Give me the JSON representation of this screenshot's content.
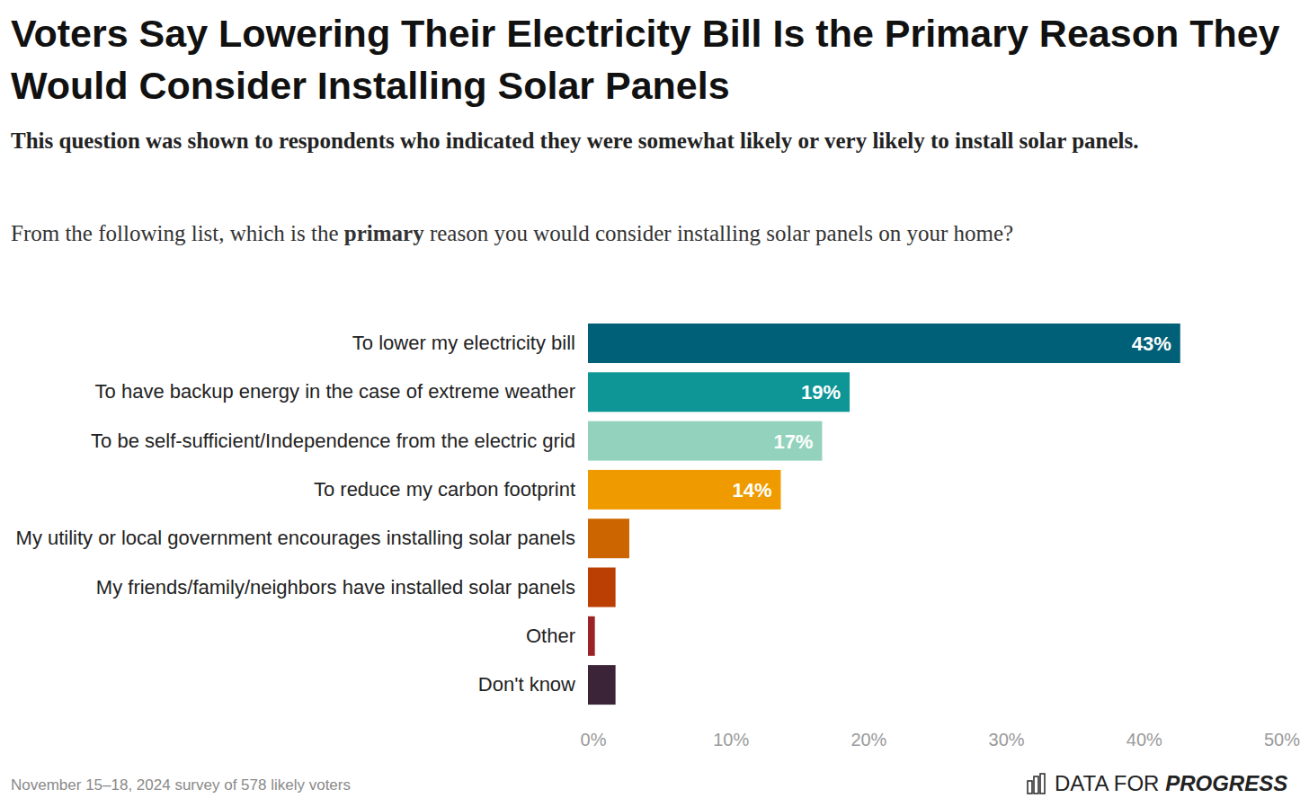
{
  "chart_data": {
    "type": "bar",
    "orientation": "horizontal",
    "title": "Voters Say Lowering Their Electricity Bill Is the Primary Reason They Would Consider Installing Solar Panels",
    "subtitle": "This question was shown to respondents who indicated they were somewhat likely or very likely to install solar panels.",
    "question": {
      "text_before": "From the following list, which is the",
      "emphasis": "primary",
      "text_after": "reason you would consider installing solar panels on your home?"
    },
    "categories": [
      "To lower my electricity bill",
      "To have backup energy in the case of extreme weather",
      "To be self-sufficient/Independence from the electric grid",
      "To reduce my carbon footprint",
      "My utility or local government encourages installing solar panels",
      "My friends/family/neighbors have installed solar panels",
      "Other",
      "Don't know"
    ],
    "values": [
      43,
      19,
      17,
      14,
      3,
      2,
      0.5,
      2
    ],
    "value_labels": [
      "43%",
      "19%",
      "17%",
      "14%",
      null,
      null,
      null,
      null
    ],
    "data_labels": true,
    "colors": [
      "#006077",
      "#0e9596",
      "#93d3bd",
      "#ef9b00",
      "#cc6400",
      "#bb3e03",
      "#9b2226",
      "#3c2438"
    ],
    "xlim": [
      0,
      50
    ],
    "xticks": [
      {
        "value": 0,
        "label": "0%"
      },
      {
        "value": 10,
        "label": "10%"
      },
      {
        "value": 20,
        "label": "20%"
      },
      {
        "value": 30,
        "label": "30%"
      },
      {
        "value": 40,
        "label": "40%"
      },
      {
        "value": 50,
        "label": "50%"
      }
    ],
    "grid": false,
    "source": "November 15–18, 2024 survey of 578 likely voters",
    "brand": {
      "prefix": "DATA FOR",
      "emphasis": "PROGRESS"
    }
  }
}
